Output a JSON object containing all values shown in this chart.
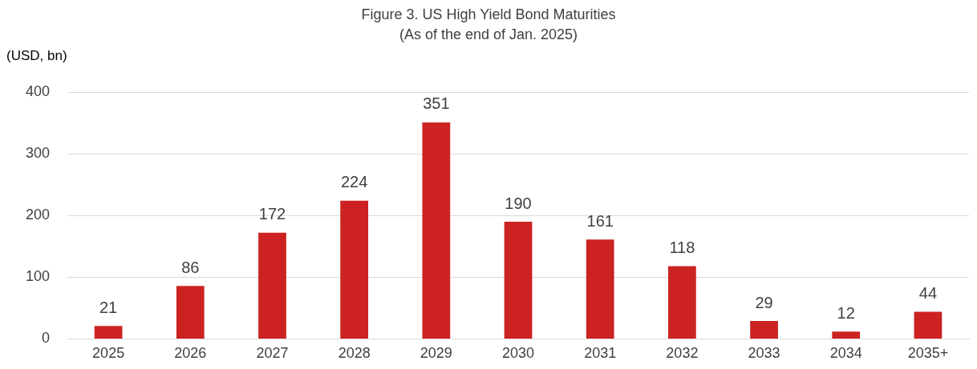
{
  "chart_data": {
    "type": "bar",
    "title": "Figure 3. US High Yield Bond Maturities",
    "subtitle": "(As of the end of Jan. 2025)",
    "ylabel": "(USD, bn)",
    "categories": [
      "2025",
      "2026",
      "2027",
      "2028",
      "2029",
      "2030",
      "2031",
      "2032",
      "2033",
      "2034",
      "2035+"
    ],
    "values": [
      21,
      86,
      172,
      224,
      351,
      190,
      161,
      118,
      29,
      12,
      44
    ],
    "color": "#cc2222",
    "ylim": [
      0,
      400
    ],
    "yticks": [
      0,
      100,
      200,
      300,
      400
    ],
    "grid": "y",
    "data_labels": true
  }
}
